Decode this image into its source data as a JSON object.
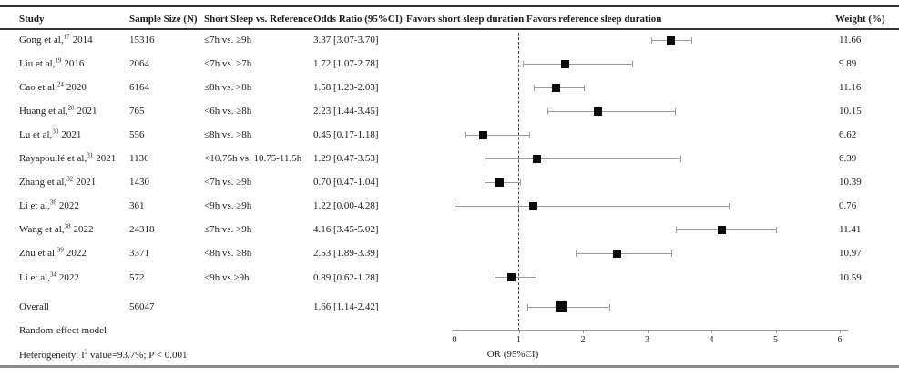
{
  "columns": {
    "study": "Study",
    "sample_size": "Sample Size (N)",
    "comparison": "Short Sleep vs. Reference",
    "odds_ratio": "Odds Ratio (95%CI)",
    "favors_short": "Favors short sleep duration",
    "favors_reference": "Favors reference sleep duration",
    "weight": "Weight (%)"
  },
  "studies": [
    {
      "name": "Gong et al,",
      "sup": "17",
      "year": "2014",
      "n": "15316",
      "comparison": "≤7h vs. ≥9h",
      "or_text": "3.37 [3.07-3.70]",
      "or": 3.37,
      "ci_low": 3.07,
      "ci_high": 3.7,
      "weight": "11.66"
    },
    {
      "name": "Liu et al,",
      "sup": "19",
      "year": "2016",
      "n": "2064",
      "comparison": "<7h vs. ≥7h",
      "or_text": "1.72 [1.07-2.78]",
      "or": 1.72,
      "ci_low": 1.07,
      "ci_high": 2.78,
      "weight": "9.89"
    },
    {
      "name": "Cao et al,",
      "sup": "24",
      "year": "2020",
      "n": "6164",
      "comparison": "≤8h vs. >8h",
      "or_text": "1.58 [1.23-2.03]",
      "or": 1.58,
      "ci_low": 1.23,
      "ci_high": 2.03,
      "weight": "11.16"
    },
    {
      "name": "Huang et al,",
      "sup": "28",
      "year": "2021",
      "n": "765",
      "comparison": "<6h vs. ≥8h",
      "or_text": "2.23 [1.44-3.45]",
      "or": 2.23,
      "ci_low": 1.44,
      "ci_high": 3.45,
      "weight": "10.15"
    },
    {
      "name": "Lu et al,",
      "sup": "30",
      "year": "2021",
      "n": "556",
      "comparison": "≤8h vs. >8h",
      "or_text": "0.45 [0.17-1.18]",
      "or": 0.45,
      "ci_low": 0.17,
      "ci_high": 1.18,
      "weight": "6.62"
    },
    {
      "name": "Rayapoullé et al,",
      "sup": "31",
      "year": "2021",
      "n": "1130",
      "comparison": "<10.75h vs. 10.75-11.5h",
      "or_text": "1.29 [0.47-3.53]",
      "or": 1.29,
      "ci_low": 0.47,
      "ci_high": 3.53,
      "weight": "6.39"
    },
    {
      "name": "Zhang et al,",
      "sup": "32",
      "year": "2021",
      "n": "1430",
      "comparison": "<7h vs. ≥9h",
      "or_text": "0.70 [0.47-1.04]",
      "or": 0.7,
      "ci_low": 0.47,
      "ci_high": 1.04,
      "weight": "10.39"
    },
    {
      "name": "Li et al,",
      "sup": "36",
      "year": "2022",
      "n": "361",
      "comparison": "<9h vs. ≥9h",
      "or_text": "1.22 [0.00-4.28]",
      "or": 1.22,
      "ci_low": 0.0,
      "ci_high": 4.28,
      "weight": "0.76"
    },
    {
      "name": "Wang et al,",
      "sup": "38",
      "year": "2022",
      "n": "24318",
      "comparison": "≤7h vs. >9h",
      "or_text": "4.16 [3.45-5.02]",
      "or": 4.16,
      "ci_low": 3.45,
      "ci_high": 5.02,
      "weight": "11.41"
    },
    {
      "name": "Zhu et al,",
      "sup": "39",
      "year": "2022",
      "n": "3371",
      "comparison": "<8h vs. ≥8h",
      "or_text": "2.53 [1.89-3.39]",
      "or": 2.53,
      "ci_low": 1.89,
      "ci_high": 3.39,
      "weight": "10.97"
    },
    {
      "name": "Li et al,",
      "sup": "34",
      "year": "2022",
      "n": "572",
      "comparison": "<9h vs.≥9h",
      "or_text": "0.89 [0.62-1.28]",
      "or": 0.89,
      "ci_low": 0.62,
      "ci_high": 1.28,
      "weight": "10.59"
    }
  ],
  "overall": {
    "label": "Overall",
    "n": "56047",
    "or_text": "1.66 [1.14-2.42]",
    "or": 1.66,
    "ci_low": 1.14,
    "ci_high": 2.42
  },
  "footer": {
    "model_label": "Random-effect model",
    "het_prefix": "Heterogeneity: I",
    "het_sup": "2",
    "het_rest": " value=93.7%; P < 0.001"
  },
  "axis": {
    "ticks": [
      0,
      1,
      2,
      3,
      4,
      5,
      6
    ],
    "label": "OR (95%CI)",
    "reference_line_x": 1
  },
  "colors": {
    "marker": "#0b0b0b",
    "ci_bar": "#9a9a9a",
    "rule_dark": "#333333",
    "rule_bottom": "#8c8c8c"
  },
  "chart_data": {
    "type": "scatter",
    "title": "Forest plot of odds ratios for short sleep duration vs. reference sleep duration",
    "xlabel": "OR (95%CI)",
    "xlim": [
      0,
      6
    ],
    "x_ticks": [
      0,
      1,
      2,
      3,
      4,
      5,
      6
    ],
    "reference_line_x": 1,
    "legend_position": "none",
    "grid": false,
    "categories": [
      "Gong et al,17 2014",
      "Liu et al,19 2016",
      "Cao et al,24 2020",
      "Huang et al,28 2021",
      "Lu et al,30 2021",
      "Rayapoullé et al,31 2021",
      "Zhang et al,32 2021",
      "Li et al,36 2022",
      "Wang et al,38 2022",
      "Zhu et al,39 2022",
      "Li et al,34 2022",
      "Overall"
    ],
    "series": [
      {
        "name": "Odds Ratio",
        "values": [
          3.37,
          1.72,
          1.58,
          2.23,
          0.45,
          1.29,
          0.7,
          1.22,
          4.16,
          2.53,
          0.89,
          1.66
        ]
      },
      {
        "name": "CI lower",
        "values": [
          3.07,
          1.07,
          1.23,
          1.44,
          0.17,
          0.47,
          0.47,
          0.0,
          3.45,
          1.89,
          0.62,
          1.14
        ]
      },
      {
        "name": "CI upper",
        "values": [
          3.7,
          2.78,
          2.03,
          3.45,
          1.18,
          3.53,
          1.04,
          4.28,
          5.02,
          3.39,
          1.28,
          2.42
        ]
      },
      {
        "name": "Sample Size (N)",
        "values": [
          15316,
          2064,
          6164,
          765,
          556,
          1130,
          1430,
          361,
          24318,
          3371,
          572,
          56047
        ]
      },
      {
        "name": "Weight (%)",
        "values": [
          11.66,
          9.89,
          11.16,
          10.15,
          6.62,
          6.39,
          10.39,
          0.76,
          11.41,
          10.97,
          10.59,
          null
        ]
      }
    ]
  }
}
